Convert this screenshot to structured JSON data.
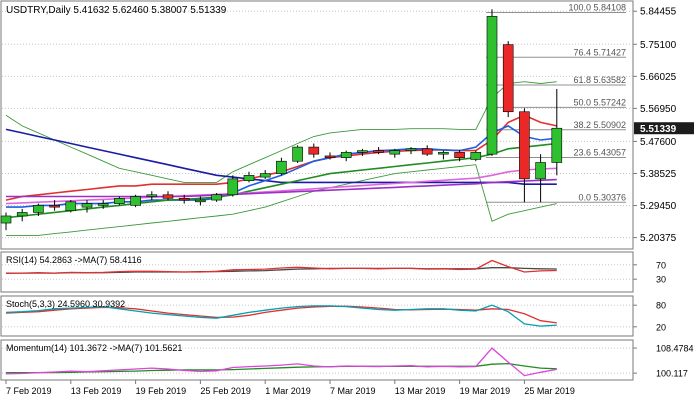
{
  "chart_data": {
    "type": "candlestick",
    "symbol_line": "USDTRY,Daily  5.41632 5.62460 5.38007 5.51339",
    "price_axis": {
      "ticks": [
        "5.84455",
        "5.75100",
        "5.66025",
        "5.56950",
        "5.47600",
        "5.38525",
        "5.29450",
        "5.20375"
      ],
      "range": [
        5.18,
        5.865
      ],
      "current_price": "5.51339"
    },
    "x_axis": {
      "labels": [
        "7 Feb 2019",
        "13 Feb 2019",
        "19 Feb 2019",
        "25 Feb 2019",
        "1 Mar 2019",
        "7 Mar 2019",
        "13 Mar 2019",
        "19 Mar 2019",
        "25 Mar 2019"
      ],
      "label_bar_index": [
        0,
        4,
        8,
        12,
        16,
        20,
        24,
        28,
        32
      ]
    },
    "candles": [
      {
        "o": 5.245,
        "h": 5.275,
        "l": 5.225,
        "c": 5.265
      },
      {
        "o": 5.265,
        "h": 5.285,
        "l": 5.25,
        "c": 5.275
      },
      {
        "o": 5.275,
        "h": 5.3,
        "l": 5.265,
        "c": 5.295
      },
      {
        "o": 5.295,
        "h": 5.31,
        "l": 5.28,
        "c": 5.29
      },
      {
        "o": 5.28,
        "h": 5.31,
        "l": 5.275,
        "c": 5.305
      },
      {
        "o": 5.29,
        "h": 5.31,
        "l": 5.275,
        "c": 5.3
      },
      {
        "o": 5.295,
        "h": 5.31,
        "l": 5.285,
        "c": 5.3
      },
      {
        "o": 5.3,
        "h": 5.32,
        "l": 5.295,
        "c": 5.315
      },
      {
        "o": 5.295,
        "h": 5.325,
        "l": 5.29,
        "c": 5.32
      },
      {
        "o": 5.32,
        "h": 5.335,
        "l": 5.31,
        "c": 5.325
      },
      {
        "o": 5.325,
        "h": 5.335,
        "l": 5.31,
        "c": 5.315
      },
      {
        "o": 5.315,
        "h": 5.325,
        "l": 5.3,
        "c": 5.31
      },
      {
        "o": 5.305,
        "h": 5.32,
        "l": 5.295,
        "c": 5.31
      },
      {
        "o": 5.31,
        "h": 5.33,
        "l": 5.305,
        "c": 5.325
      },
      {
        "o": 5.325,
        "h": 5.38,
        "l": 5.32,
        "c": 5.37
      },
      {
        "o": 5.365,
        "h": 5.39,
        "l": 5.36,
        "c": 5.38
      },
      {
        "o": 5.375,
        "h": 5.395,
        "l": 5.37,
        "c": 5.385
      },
      {
        "o": 5.385,
        "h": 5.43,
        "l": 5.38,
        "c": 5.42
      },
      {
        "o": 5.42,
        "h": 5.465,
        "l": 5.415,
        "c": 5.46
      },
      {
        "o": 5.46,
        "h": 5.47,
        "l": 5.43,
        "c": 5.44
      },
      {
        "o": 5.435,
        "h": 5.445,
        "l": 5.425,
        "c": 5.43
      },
      {
        "o": 5.43,
        "h": 5.45,
        "l": 5.42,
        "c": 5.445
      },
      {
        "o": 5.445,
        "h": 5.455,
        "l": 5.435,
        "c": 5.45
      },
      {
        "o": 5.45,
        "h": 5.46,
        "l": 5.44,
        "c": 5.445
      },
      {
        "o": 5.44,
        "h": 5.455,
        "l": 5.43,
        "c": 5.45
      },
      {
        "o": 5.45,
        "h": 5.46,
        "l": 5.44,
        "c": 5.455
      },
      {
        "o": 5.455,
        "h": 5.465,
        "l": 5.435,
        "c": 5.44
      },
      {
        "o": 5.44,
        "h": 5.45,
        "l": 5.425,
        "c": 5.445
      },
      {
        "o": 5.445,
        "h": 5.452,
        "l": 5.42,
        "c": 5.43
      },
      {
        "o": 5.425,
        "h": 5.45,
        "l": 5.42,
        "c": 5.445
      },
      {
        "o": 5.44,
        "h": 5.85,
        "l": 5.435,
        "c": 5.83
      },
      {
        "o": 5.75,
        "h": 5.76,
        "l": 5.545,
        "c": 5.56
      },
      {
        "o": 5.56,
        "h": 5.57,
        "l": 5.30376,
        "c": 5.37
      },
      {
        "o": 5.37,
        "h": 5.44,
        "l": 5.30376,
        "c": 5.41632
      },
      {
        "o": 5.41632,
        "h": 5.6246,
        "l": 5.38007,
        "c": 5.51339
      }
    ],
    "fibonacci": [
      {
        "label": "100.0 5.84108",
        "value": 5.84108
      },
      {
        "label": "76.4 5.71427",
        "value": 5.71427
      },
      {
        "label": "61.8 5.63582",
        "value": 5.63582
      },
      {
        "label": "50.0 5.57242",
        "value": 5.57242
      },
      {
        "label": "38.2 5.50902",
        "value": 5.50902
      },
      {
        "label": "23.6 5.43057",
        "value": 5.43057
      },
      {
        "label": "0.0 5.30376",
        "value": 5.30376
      }
    ],
    "moving_averages": [
      {
        "color": "#e03030",
        "values": [
          5.31,
          5.32,
          5.325,
          5.33,
          5.335,
          5.34,
          5.345,
          5.35,
          5.35,
          5.355,
          5.355,
          5.355,
          5.355,
          5.355,
          5.36,
          5.37,
          5.38,
          5.39,
          5.405,
          5.42,
          5.43,
          5.435,
          5.44,
          5.445,
          5.448,
          5.45,
          5.452,
          5.452,
          5.45,
          5.45,
          5.48,
          5.53,
          5.55,
          5.53,
          5.52
        ]
      },
      {
        "color": "#1a1aa6",
        "values": [
          5.51,
          5.5,
          5.49,
          5.48,
          5.47,
          5.46,
          5.45,
          5.44,
          5.43,
          5.42,
          5.41,
          5.4,
          5.39,
          5.38,
          5.375,
          5.37,
          5.365,
          5.36,
          5.36,
          5.36,
          5.36,
          5.36,
          5.36,
          5.36,
          5.36,
          5.36,
          5.36,
          5.36,
          5.36,
          5.36,
          5.36,
          5.36,
          5.355,
          5.355,
          5.355
        ]
      },
      {
        "color": "#1e5fe0",
        "values": [
          5.29,
          5.29,
          5.295,
          5.295,
          5.3,
          5.3,
          5.3,
          5.305,
          5.305,
          5.31,
          5.31,
          5.31,
          5.31,
          5.315,
          5.33,
          5.35,
          5.365,
          5.38,
          5.4,
          5.42,
          5.43,
          5.44,
          5.445,
          5.45,
          5.452,
          5.455,
          5.455,
          5.452,
          5.45,
          5.46,
          5.5,
          5.52,
          5.49,
          5.48,
          5.485
        ]
      },
      {
        "color": "#228b22",
        "values": [
          5.26,
          5.265,
          5.27,
          5.275,
          5.28,
          5.285,
          5.29,
          5.295,
          5.3,
          5.305,
          5.31,
          5.312,
          5.315,
          5.318,
          5.325,
          5.335,
          5.345,
          5.355,
          5.365,
          5.375,
          5.385,
          5.39,
          5.395,
          5.4,
          5.405,
          5.41,
          5.415,
          5.42,
          5.425,
          5.43,
          5.44,
          5.455,
          5.46,
          5.465,
          5.47
        ]
      },
      {
        "color": "#dd66dd",
        "values": [
          5.3,
          5.302,
          5.304,
          5.306,
          5.308,
          5.31,
          5.312,
          5.314,
          5.316,
          5.318,
          5.32,
          5.322,
          5.324,
          5.326,
          5.328,
          5.33,
          5.333,
          5.336,
          5.339,
          5.342,
          5.345,
          5.348,
          5.351,
          5.354,
          5.357,
          5.36,
          5.363,
          5.366,
          5.369,
          5.372,
          5.38,
          5.39,
          5.395,
          5.398,
          5.4
        ]
      },
      {
        "color": "#9b30c8",
        "values": [
          5.32,
          5.32,
          5.32,
          5.32,
          5.32,
          5.32,
          5.32,
          5.32,
          5.32,
          5.32,
          5.32,
          5.32,
          5.322,
          5.324,
          5.326,
          5.328,
          5.33,
          5.332,
          5.334,
          5.336,
          5.338,
          5.34,
          5.342,
          5.344,
          5.346,
          5.348,
          5.35,
          5.352,
          5.354,
          5.356,
          5.36,
          5.362,
          5.364,
          5.366,
          5.368
        ]
      }
    ],
    "bollinger": {
      "color": "#3a9a3a",
      "upper": [
        5.55,
        5.52,
        5.5,
        5.48,
        5.46,
        5.44,
        5.42,
        5.4,
        5.39,
        5.38,
        5.37,
        5.36,
        5.36,
        5.36,
        5.39,
        5.41,
        5.43,
        5.45,
        5.47,
        5.49,
        5.5,
        5.505,
        5.51,
        5.51,
        5.51,
        5.512,
        5.512,
        5.512,
        5.51,
        5.51,
        5.6,
        5.64,
        5.645,
        5.64,
        5.645
      ],
      "lower": [
        5.21,
        5.21,
        5.21,
        5.215,
        5.22,
        5.225,
        5.23,
        5.235,
        5.24,
        5.245,
        5.25,
        5.255,
        5.26,
        5.265,
        5.27,
        5.28,
        5.29,
        5.305,
        5.32,
        5.335,
        5.345,
        5.355,
        5.365,
        5.375,
        5.385,
        5.39,
        5.395,
        5.4,
        5.405,
        5.41,
        5.25,
        5.27,
        5.28,
        5.29,
        5.3
      ]
    },
    "rsi": {
      "label": "RSI(14) 54.2863  ->MA(7) 58.4116",
      "levels": [
        "70",
        "30"
      ],
      "range": [
        0,
        100
      ],
      "rsi_color": "#e03030",
      "ma_color": "#4a4a4a",
      "rsi": [
        46,
        47,
        48,
        47,
        49,
        48,
        49,
        51,
        52,
        52,
        51,
        50,
        50,
        52,
        56,
        57,
        58,
        61,
        63,
        61,
        59,
        60,
        60,
        59,
        60,
        60,
        58,
        59,
        57,
        58,
        82,
        65,
        50,
        53,
        54.2863
      ],
      "ma": [
        47,
        47,
        47,
        47,
        48,
        48,
        48,
        49,
        50,
        50,
        50,
        50,
        51,
        51,
        52,
        53,
        54,
        56,
        58,
        59,
        60,
        60,
        60,
        60,
        60,
        60,
        59,
        59,
        59,
        59,
        62,
        62,
        60,
        59,
        58.4116
      ]
    },
    "stoch": {
      "label": "Stoch(5,3,3) 24.5960 30.9392",
      "levels": [
        "80",
        "20"
      ],
      "range": [
        0,
        100
      ],
      "main_color": "#00a0b0",
      "signal_color": "#e03030",
      "main": [
        60,
        62,
        65,
        70,
        72,
        74,
        76,
        70,
        64,
        58,
        54,
        50,
        46,
        44,
        52,
        60,
        66,
        72,
        76,
        78,
        78,
        76,
        72,
        68,
        66,
        68,
        70,
        70,
        66,
        64,
        80,
        62,
        28,
        22,
        24.596
      ],
      "signal": [
        58,
        60,
        62,
        66,
        70,
        72,
        74,
        73,
        70,
        64,
        58,
        54,
        50,
        46,
        47,
        52,
        60,
        66,
        72,
        75,
        77,
        77,
        75,
        72,
        68,
        67,
        68,
        69,
        68,
        66,
        70,
        68,
        56,
        37,
        30.9392
      ]
    },
    "momentum": {
      "label": "Momentum(14) 101.3672  ->MA(7) 101.5621",
      "ticks": [
        "108.4784",
        "100.117"
      ],
      "range": [
        98.5,
        110.5
      ],
      "mom_color": "#dd44dd",
      "ma_color": "#228b22",
      "mom": [
        99.9,
        100,
        100.3,
        100.5,
        100.8,
        100.6,
        100.9,
        101.2,
        101.5,
        101.8,
        101.5,
        101,
        100.7,
        100.9,
        102,
        102.3,
        102.5,
        102.8,
        103.2,
        102.5,
        102.2,
        102.5,
        102.4,
        102.3,
        102.5,
        102.6,
        102.2,
        102.4,
        102.2,
        102.3,
        108.4784,
        103.8,
        99.3,
        100.4,
        101.3672
      ],
      "ma": [
        100.3,
        100.3,
        100.3,
        100.3,
        100.4,
        100.5,
        100.6,
        100.7,
        100.8,
        101,
        101.1,
        101.2,
        101.2,
        101.2,
        101.3,
        101.5,
        101.7,
        101.9,
        102.1,
        102.2,
        102.3,
        102.4,
        102.4,
        102.4,
        102.4,
        102.4,
        102.4,
        102.4,
        102.4,
        102.4,
        103.1,
        103.3,
        102.5,
        101.8,
        101.5621
      ]
    }
  },
  "colors": {
    "bull": "#2ec02e",
    "bear": "#ea2828",
    "grid": "#c8c8c8",
    "frame": "#7a7a7a",
    "price_tag_bg": "#1c1c1c",
    "fib": "#909090"
  }
}
